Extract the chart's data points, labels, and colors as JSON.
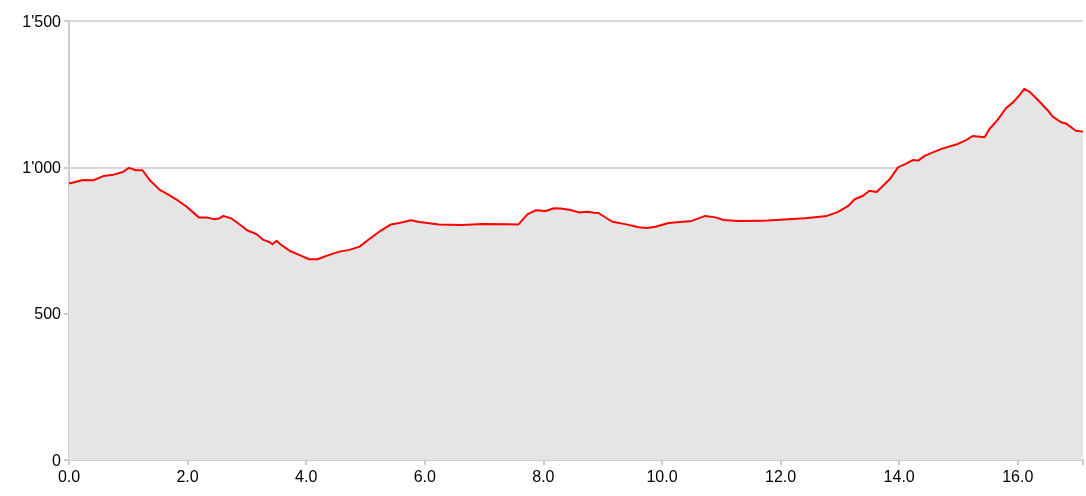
{
  "chart_data": {
    "type": "area",
    "grid": "y",
    "marker": "none",
    "line_style": "solid",
    "xlim": [
      0,
      17.1
    ],
    "xticks": [
      {
        "value": 0,
        "label": "0.0"
      },
      {
        "value": 2,
        "label": "2.0"
      },
      {
        "value": 4,
        "label": "4.0"
      },
      {
        "value": 6,
        "label": "6.0"
      },
      {
        "value": 8,
        "label": "8.0"
      },
      {
        "value": 10,
        "label": "10.0"
      },
      {
        "value": 12,
        "label": "12.0"
      },
      {
        "value": 14,
        "label": "14.0"
      },
      {
        "value": 16,
        "label": "16.0"
      },
      {
        "value": 17.1,
        "label": null
      }
    ],
    "ylim": [
      0,
      1500
    ],
    "yticks": [
      0,
      500,
      {
        "value": 1000,
        "label": "1'000"
      },
      {
        "value": 1500,
        "label": "1'500"
      }
    ],
    "x": [
      0,
      0.24,
      0.41,
      0.58,
      0.75,
      0.91,
      1.01,
      1.13,
      1.24,
      1.36,
      1.53,
      1.64,
      1.84,
      1.98,
      2.19,
      2.32,
      2.44,
      2.53,
      2.6,
      2.74,
      2.85,
      3.01,
      3.16,
      3.28,
      3.38,
      3.43,
      3.5,
      3.58,
      3.72,
      3.89,
      4.05,
      4.19,
      4.39,
      4.56,
      4.73,
      4.9,
      5.06,
      5.26,
      5.43,
      5.57,
      5.77,
      5.91,
      6.24,
      6.63,
      6.97,
      7.58,
      7.73,
      7.87,
      8.04,
      8.18,
      8.29,
      8.46,
      8.6,
      8.75,
      8.85,
      8.93,
      9.16,
      9.38,
      9.61,
      9.75,
      9.89,
      10.11,
      10.5,
      10.73,
      10.9,
      11.04,
      11.29,
      11.79,
      12.41,
      12.78,
      12.97,
      13.14,
      13.25,
      13.39,
      13.5,
      13.62,
      13.84,
      13.98,
      14.09,
      14.23,
      14.32,
      14.43,
      14.71,
      14.99,
      15.13,
      15.24,
      15.44,
      15.52,
      15.66,
      15.8,
      15.92,
      16.03,
      16.11,
      16.2,
      16.34,
      16.5,
      16.59,
      16.73,
      16.81,
      16.98,
      17.1
    ],
    "series": [
      {
        "color": "#ff0000",
        "values": [
          945,
          957,
          956,
          970,
          975,
          984,
          998,
          990,
          990,
          957,
          923,
          911,
          886,
          866,
          829,
          829,
          823,
          825,
          834,
          825,
          809,
          784,
          772,
          752,
          745,
          737,
          749,
          735,
          715,
          700,
          686,
          686,
          701,
          712,
          718,
          729,
          754,
          784,
          805,
          810,
          819,
          813,
          805,
          803,
          806,
          805,
          839,
          853,
          851,
          860,
          859,
          854,
          846,
          848,
          845,
          844,
          814,
          806,
          795,
          793,
          797,
          810,
          817,
          834,
          829,
          820,
          817,
          818,
          826,
          834,
          848,
          868,
          891,
          903,
          920,
          916,
          959,
          1000,
          1010,
          1025,
          1023,
          1039,
          1063,
          1080,
          1093,
          1107,
          1103,
          1130,
          1162,
          1202,
          1222,
          1247,
          1268,
          1258,
          1230,
          1196,
          1173,
          1154,
          1150,
          1125,
          1122
        ]
      }
    ]
  }
}
